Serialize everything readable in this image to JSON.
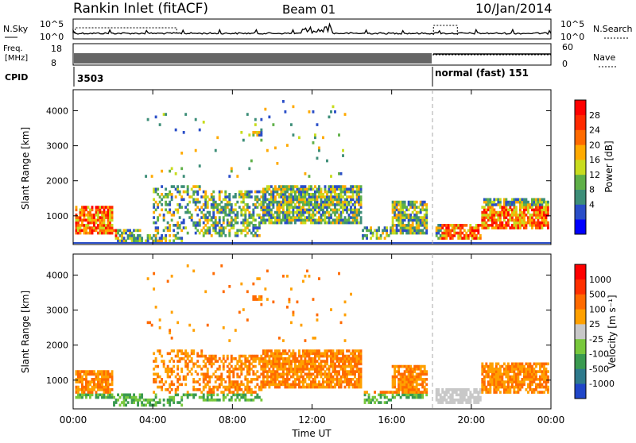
{
  "header": {
    "title": "Rankin Inlet (fitACF)",
    "beam": "Beam 01",
    "date": "10/Jan/2014"
  },
  "nsky_panel": {
    "left_label": "N.Sky",
    "right_label": "N.Search",
    "left_ticks": [
      "10^5",
      "10^0"
    ],
    "right_ticks": [
      "10^5",
      "10^0"
    ]
  },
  "freq_panel": {
    "left_label_1": "Freq.",
    "left_label_2": "[MHz]",
    "right_label": "Nave",
    "left_ticks": [
      "18",
      "8"
    ],
    "right_ticks": [
      "60",
      "0"
    ]
  },
  "cpid_panel": {
    "label": "CPID",
    "segments": [
      {
        "start_hour": 0.0,
        "text": "3503"
      },
      {
        "start_hour": 18.05,
        "text": "normal (fast) 151"
      }
    ]
  },
  "chart_data": [
    {
      "type": "heatmap",
      "name": "power",
      "ylabel": "Slant Range [km]",
      "xlabel": "",
      "xlim": [
        0,
        24
      ],
      "ylim": [
        180,
        4600
      ],
      "x_tick_values": [
        0,
        4,
        8,
        12,
        16,
        20,
        24
      ],
      "y_tick_values": [
        1000,
        2000,
        3000,
        4000
      ],
      "y_tick_labels": [
        "1000",
        "2000",
        "3000",
        "4000"
      ],
      "colorbar": {
        "label": "Power [dB]",
        "ticks": [
          "28",
          "24",
          "20",
          "16",
          "12",
          "8",
          "4"
        ],
        "colors": [
          "#0000ff",
          "#2a4ec8",
          "#3d8e78",
          "#5fb048",
          "#c8dc1e",
          "#ffaa00",
          "#ff6a00",
          "#ff2a00",
          "#ff0000"
        ]
      }
    },
    {
      "type": "heatmap",
      "name": "velocity",
      "ylabel": "Slant Range [km]",
      "xlabel": "Time UT",
      "xlim": [
        0,
        24
      ],
      "ylim": [
        180,
        4600
      ],
      "x_tick_values": [
        0,
        4,
        8,
        12,
        16,
        20,
        24
      ],
      "x_tick_labels": [
        "00:00",
        "04:00",
        "08:00",
        "12:00",
        "16:00",
        "20:00",
        "00:00"
      ],
      "y_tick_values": [
        1000,
        2000,
        3000,
        4000
      ],
      "y_tick_labels": [
        "1000",
        "2000",
        "3000",
        "4000"
      ],
      "colorbar": {
        "label": "Velocity [m s⁻¹]",
        "ticks": [
          "1000",
          "500",
          "100",
          "25",
          "-25",
          "-100",
          "-500",
          "-1000"
        ],
        "colors": [
          "#2046c8",
          "#2e7a8c",
          "#3a9a50",
          "#78c83c",
          "#c8c8c8",
          "#ffa000",
          "#ff6a00",
          "#ff3000",
          "#ff0000"
        ]
      }
    }
  ]
}
